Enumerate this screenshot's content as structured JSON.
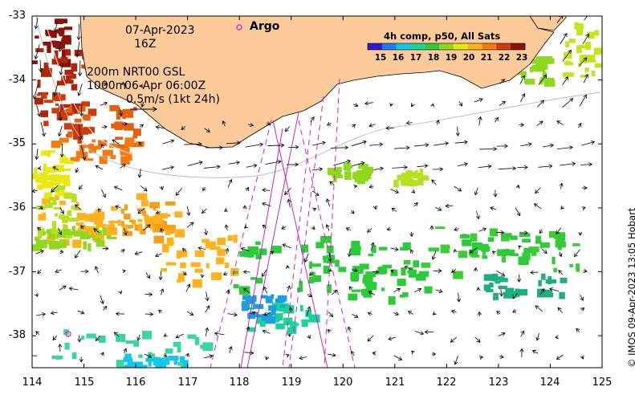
{
  "map": {
    "date": "07-Apr-2023",
    "hour": "16Z",
    "isobath_line1": "200m  NRT00 GSL",
    "isobath_line2_a": "1000m",
    "isobath_line2_b": "06-Apr 06:00Z",
    "vector_scale": "0.5m/s (1kt 24h)",
    "argo_label": "Argo",
    "credit": "© IMOS 09-Apr-2023 13:05 Hobart"
  },
  "colorbar": {
    "title": "4h comp, p50, All Sats",
    "ticks": [
      "15",
      "16",
      "17",
      "18",
      "19",
      "20",
      "21",
      "22",
      "23"
    ],
    "colors": [
      "#2a1bd0",
      "#1c7cff",
      "#12c8e8",
      "#19d49a",
      "#2dcb3a",
      "#8fd81e",
      "#e8e812",
      "#ffb21c",
      "#f47a10",
      "#cf3a0c",
      "#8a1206"
    ]
  },
  "axes": {
    "x_ticks": [
      "114",
      "115",
      "116",
      "117",
      "118",
      "119",
      "120",
      "121",
      "122",
      "123",
      "124",
      "125"
    ],
    "y_ticks": [
      "-33",
      "-34",
      "-35",
      "-36",
      "-37",
      "-38"
    ],
    "x_range": [
      114,
      125
    ],
    "y_range": [
      -38.5,
      -33
    ]
  },
  "colors": {
    "land": "#fdcb9a",
    "argo": "#e02bd8",
    "track": "#cc22cc"
  }
}
